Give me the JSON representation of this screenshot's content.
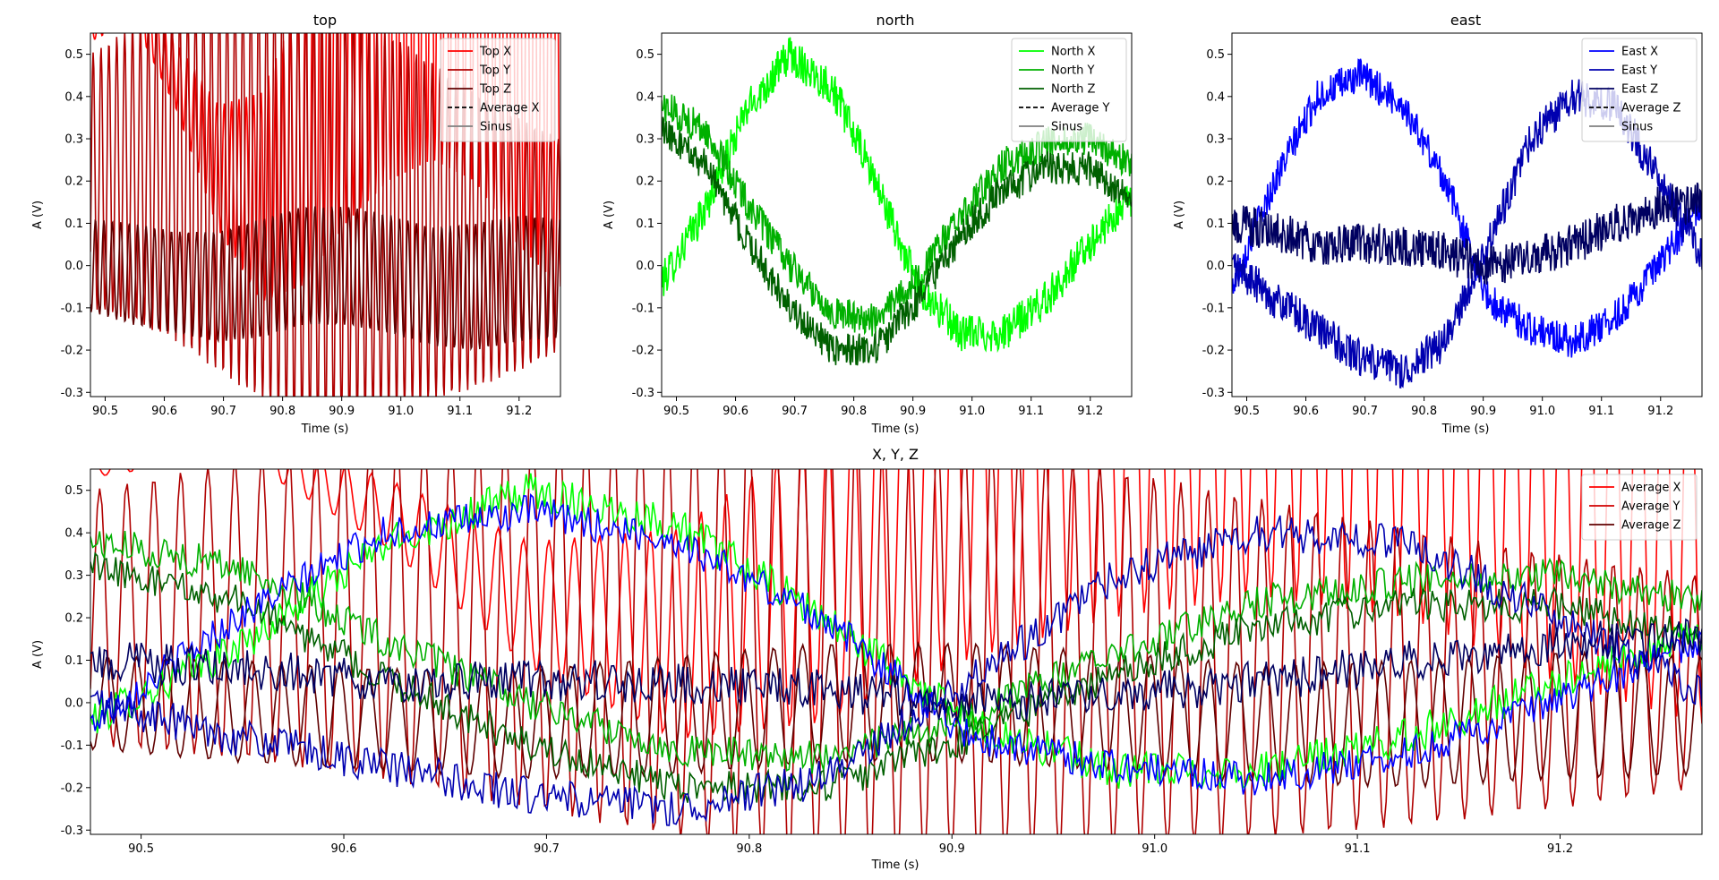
{
  "figure": {
    "background": "#ffffff"
  },
  "chart_data": [
    {
      "id": "top",
      "type": "line",
      "title": "top",
      "xlabel": "Time (s)",
      "ylabel": "A (V)",
      "xlim": [
        90.475,
        91.27
      ],
      "ylim": [
        -0.31,
        0.55
      ],
      "xticks": [
        90.5,
        90.6,
        90.7,
        90.8,
        90.9,
        91.0,
        91.1,
        91.2
      ],
      "yticks": [
        -0.3,
        -0.2,
        -0.1,
        0.0,
        0.1,
        0.2,
        0.3,
        0.4,
        0.5
      ],
      "grid": false,
      "legend_position": "upper right",
      "legend": [
        {
          "label": "Top X",
          "color": "#ff0000",
          "style": "solid"
        },
        {
          "label": "Top Y",
          "color": "#b00000",
          "style": "solid"
        },
        {
          "label": "Top Z",
          "color": "#600000",
          "style": "solid"
        },
        {
          "label": "Average X",
          "color": "#000000",
          "style": "dashed"
        },
        {
          "label": "Sinus",
          "color": "#808080",
          "style": "solid"
        }
      ],
      "series": [
        {
          "name": "Top X",
          "color": "#ff0000",
          "gen": {
            "base": [
              0.55,
              0.62,
              0.45,
              0.23,
              0.16,
              0.3,
              0.55,
              0.7,
              0.75,
              0.7,
              0.55,
              0.45
            ],
            "amp": [
              0.02,
              0.04,
              0.08,
              0.15,
              0.25,
              0.35,
              0.45,
              0.5,
              0.5,
              0.5,
              0.5,
              0.5
            ],
            "freq": 80,
            "noise": 0.0
          }
        },
        {
          "name": "Top Y",
          "color": "#b00000",
          "gen": {
            "base": [
              0.2,
              0.22,
              0.22,
              0.2,
              0.18,
              0.15,
              0.12,
              0.1,
              0.08,
              0.06,
              0.05,
              0.05
            ],
            "amp": [
              0.3,
              0.35,
              0.4,
              0.45,
              0.5,
              0.55,
              0.5,
              0.45,
              0.4,
              0.35,
              0.3,
              0.25
            ],
            "freq": 75,
            "noise": 0.0
          }
        },
        {
          "name": "Top Z",
          "color": "#600000",
          "gen": {
            "base": [
              0.0,
              -0.02,
              -0.04,
              -0.05,
              -0.03,
              0.0,
              0.0,
              -0.02,
              -0.05,
              -0.05,
              -0.03,
              -0.03
            ],
            "amp": [
              0.11,
              0.12,
              0.12,
              0.13,
              0.14,
              0.14,
              0.14,
              0.14,
              0.14,
              0.15,
              0.15,
              0.14
            ],
            "freq": 70,
            "noise": 0.0
          }
        }
      ]
    },
    {
      "id": "north",
      "type": "line",
      "title": "north",
      "xlabel": "Time (s)",
      "ylabel": "A (V)",
      "xlim": [
        90.475,
        91.27
      ],
      "ylim": [
        -0.31,
        0.55
      ],
      "xticks": [
        90.5,
        90.6,
        90.7,
        90.8,
        90.9,
        91.0,
        91.1,
        91.2
      ],
      "yticks": [
        -0.3,
        -0.2,
        -0.1,
        0.0,
        0.1,
        0.2,
        0.3,
        0.4,
        0.5
      ],
      "grid": false,
      "legend_position": "upper right",
      "legend": [
        {
          "label": "North X",
          "color": "#00ff00",
          "style": "solid"
        },
        {
          "label": "North Y",
          "color": "#00b000",
          "style": "solid"
        },
        {
          "label": "North Z",
          "color": "#006000",
          "style": "solid"
        },
        {
          "label": "Average Y",
          "color": "#000000",
          "style": "dashed"
        },
        {
          "label": "Sinus",
          "color": "#808080",
          "style": "solid"
        }
      ],
      "series": [
        {
          "name": "North X",
          "color": "#00ff00",
          "gen": {
            "base": [
              -0.04,
              0.13,
              0.37,
              0.5,
              0.42,
              0.2,
              -0.05,
              -0.16,
              -0.16,
              -0.08,
              0.05,
              0.16
            ],
            "amp": [
              0
            ],
            "freq": 0,
            "noise": 0.045
          }
        },
        {
          "name": "North Y",
          "color": "#00b000",
          "gen": {
            "base": [
              0.38,
              0.32,
              0.15,
              0.0,
              -0.11,
              -0.13,
              -0.03,
              0.12,
              0.24,
              0.29,
              0.3,
              0.24
            ],
            "amp": [
              0
            ],
            "freq": 0,
            "noise": 0.04
          }
        },
        {
          "name": "North Z",
          "color": "#006000",
          "gen": {
            "base": [
              0.32,
              0.24,
              0.06,
              -0.1,
              -0.2,
              -0.2,
              -0.08,
              0.07,
              0.18,
              0.23,
              0.23,
              0.15
            ],
            "amp": [
              0
            ],
            "freq": 0,
            "noise": 0.04
          }
        }
      ]
    },
    {
      "id": "east",
      "type": "line",
      "title": "east",
      "xlabel": "Time (s)",
      "ylabel": "A (V)",
      "xlim": [
        90.475,
        91.27
      ],
      "ylim": [
        -0.31,
        0.55
      ],
      "xticks": [
        90.5,
        90.6,
        90.7,
        90.8,
        90.9,
        91.0,
        91.1,
        91.2
      ],
      "yticks": [
        -0.3,
        -0.2,
        -0.1,
        0.0,
        0.1,
        0.2,
        0.3,
        0.4,
        0.5
      ],
      "grid": false,
      "legend_position": "upper right",
      "legend": [
        {
          "label": "East X",
          "color": "#0000ff",
          "style": "solid"
        },
        {
          "label": "East Y",
          "color": "#0000b0",
          "style": "solid"
        },
        {
          "label": "East Z",
          "color": "#000060",
          "style": "solid"
        },
        {
          "label": "Average Z",
          "color": "#000000",
          "style": "dashed"
        },
        {
          "label": "Sinus",
          "color": "#808080",
          "style": "solid"
        }
      ],
      "series": [
        {
          "name": "East X",
          "color": "#0000ff",
          "gen": {
            "base": [
              -0.05,
              0.2,
              0.4,
              0.45,
              0.38,
              0.2,
              -0.08,
              -0.15,
              -0.18,
              -0.12,
              0.0,
              0.15
            ],
            "amp": [
              0
            ],
            "freq": 0,
            "noise": 0.04
          }
        },
        {
          "name": "East Y",
          "color": "#0000b0",
          "gen": {
            "base": [
              0.0,
              -0.08,
              -0.15,
              -0.22,
              -0.25,
              -0.18,
              0.05,
              0.3,
              0.4,
              0.38,
              0.2,
              0.02
            ],
            "amp": [
              0
            ],
            "freq": 0,
            "noise": 0.045
          }
        },
        {
          "name": "East Z",
          "color": "#000060",
          "gen": {
            "base": [
              0.1,
              0.08,
              0.05,
              0.05,
              0.05,
              0.03,
              0.0,
              0.02,
              0.05,
              0.1,
              0.14,
              0.15
            ],
            "amp": [
              0
            ],
            "freq": 0,
            "noise": 0.05
          }
        }
      ]
    },
    {
      "id": "xyz",
      "type": "line",
      "title": "X, Y, Z",
      "xlabel": "Time (s)",
      "ylabel": "A (V)",
      "xlim": [
        90.475,
        91.27
      ],
      "ylim": [
        -0.31,
        0.55
      ],
      "xticks": [
        90.5,
        90.6,
        90.7,
        90.8,
        90.9,
        91.0,
        91.1,
        91.2
      ],
      "yticks": [
        -0.3,
        -0.2,
        -0.1,
        0.0,
        0.1,
        0.2,
        0.3,
        0.4,
        0.5
      ],
      "grid": false,
      "legend_position": "upper right",
      "legend": [
        {
          "label": "Average X",
          "color": "#ff0000",
          "style": "solid"
        },
        {
          "label": "Average Y",
          "color": "#d00000",
          "style": "solid"
        },
        {
          "label": "Average Z",
          "color": "#600000",
          "style": "solid"
        }
      ],
      "series": [
        {
          "name": "",
          "color": "#ff0000",
          "ref": "top.0"
        },
        {
          "name": "",
          "color": "#b00000",
          "ref": "top.1"
        },
        {
          "name": "",
          "color": "#600000",
          "ref": "top.2"
        },
        {
          "name": "",
          "color": "#00ff00",
          "ref": "north.0"
        },
        {
          "name": "",
          "color": "#00b000",
          "ref": "north.1"
        },
        {
          "name": "",
          "color": "#006000",
          "ref": "north.2"
        },
        {
          "name": "",
          "color": "#0000ff",
          "ref": "east.0"
        },
        {
          "name": "",
          "color": "#0000b0",
          "ref": "east.1"
        },
        {
          "name": "",
          "color": "#000060",
          "ref": "east.2"
        }
      ]
    }
  ]
}
